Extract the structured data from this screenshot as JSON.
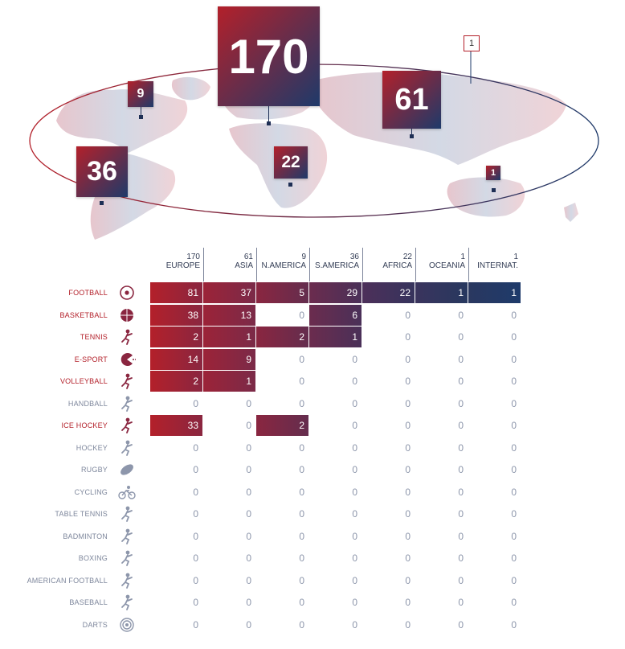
{
  "chart_data": {
    "type": "table",
    "columns": [
      {
        "count": "170",
        "region": "EUROPE"
      },
      {
        "count": "61",
        "region": "ASIA"
      },
      {
        "count": "9",
        "region": "N.AMERICA"
      },
      {
        "count": "36",
        "region": "S.AMERICA"
      },
      {
        "count": "22",
        "region": "AFRICA"
      },
      {
        "count": "1",
        "region": "OCEANIA"
      },
      {
        "count": "1",
        "region": "INTERNAT."
      }
    ],
    "rows": [
      {
        "sport": "FOOTBALL",
        "icon": "football-icon",
        "values": [
          81,
          37,
          5,
          29,
          22,
          1,
          1
        ],
        "filled": [
          1,
          1,
          1,
          1,
          1,
          1,
          1
        ]
      },
      {
        "sport": "BASKETBALL",
        "icon": "basketball-icon",
        "values": [
          38,
          13,
          0,
          6,
          0,
          0,
          0
        ],
        "filled": [
          1,
          1,
          0,
          1,
          0,
          0,
          0
        ]
      },
      {
        "sport": "TENNIS",
        "icon": "tennis-icon",
        "values": [
          2,
          1,
          2,
          1,
          0,
          0,
          0
        ],
        "filled": [
          1,
          1,
          1,
          1,
          0,
          0,
          0
        ]
      },
      {
        "sport": "E-SPORT",
        "icon": "esport-icon",
        "values": [
          14,
          9,
          0,
          0,
          0,
          0,
          0
        ],
        "filled": [
          1,
          1,
          0,
          0,
          0,
          0,
          0
        ]
      },
      {
        "sport": "VOLLEYBALL",
        "icon": "volleyball-icon",
        "values": [
          2,
          1,
          0,
          0,
          0,
          0,
          0
        ],
        "filled": [
          1,
          1,
          0,
          0,
          0,
          0,
          0
        ]
      },
      {
        "sport": "HANDBALL",
        "icon": "handball-icon",
        "values": [
          0,
          0,
          0,
          0,
          0,
          0,
          0
        ],
        "filled": [
          0,
          0,
          0,
          0,
          0,
          0,
          0
        ]
      },
      {
        "sport": "ICE HOCKEY",
        "icon": "ice-hockey-icon",
        "values": [
          33,
          0,
          2,
          0,
          0,
          0,
          0
        ],
        "filled": [
          1,
          0,
          1,
          0,
          0,
          0,
          0
        ]
      },
      {
        "sport": "HOCKEY",
        "icon": "hockey-icon",
        "values": [
          0,
          0,
          0,
          0,
          0,
          0,
          0
        ],
        "filled": [
          0,
          0,
          0,
          0,
          0,
          0,
          0
        ]
      },
      {
        "sport": "RUGBY",
        "icon": "rugby-icon",
        "values": [
          0,
          0,
          0,
          0,
          0,
          0,
          0
        ],
        "filled": [
          0,
          0,
          0,
          0,
          0,
          0,
          0
        ]
      },
      {
        "sport": "CYCLING",
        "icon": "cycling-icon",
        "values": [
          0,
          0,
          0,
          0,
          0,
          0,
          0
        ],
        "filled": [
          0,
          0,
          0,
          0,
          0,
          0,
          0
        ]
      },
      {
        "sport": "TABLE TENNIS",
        "icon": "table-tennis-icon",
        "values": [
          0,
          0,
          0,
          0,
          0,
          0,
          0
        ],
        "filled": [
          0,
          0,
          0,
          0,
          0,
          0,
          0
        ]
      },
      {
        "sport": "BADMINTON",
        "icon": "badminton-icon",
        "values": [
          0,
          0,
          0,
          0,
          0,
          0,
          0
        ],
        "filled": [
          0,
          0,
          0,
          0,
          0,
          0,
          0
        ]
      },
      {
        "sport": "BOXING",
        "icon": "boxing-icon",
        "values": [
          0,
          0,
          0,
          0,
          0,
          0,
          0
        ],
        "filled": [
          0,
          0,
          0,
          0,
          0,
          0,
          0
        ]
      },
      {
        "sport": "AMERICAN FOOTBALL",
        "icon": "american-football-icon",
        "values": [
          0,
          0,
          0,
          0,
          0,
          0,
          0
        ],
        "filled": [
          0,
          0,
          0,
          0,
          0,
          0,
          0
        ]
      },
      {
        "sport": "BASEBALL",
        "icon": "baseball-icon",
        "values": [
          0,
          0,
          0,
          0,
          0,
          0,
          0
        ],
        "filled": [
          0,
          0,
          0,
          0,
          0,
          0,
          0
        ]
      },
      {
        "sport": "DARTS",
        "icon": "darts-icon",
        "values": [
          0,
          0,
          0,
          0,
          0,
          0,
          0
        ],
        "filled": [
          0,
          0,
          0,
          0,
          0,
          0,
          0
        ]
      }
    ],
    "map_badges": [
      {
        "region": "EUROPE",
        "value": "170"
      },
      {
        "region": "ASIA",
        "value": "61"
      },
      {
        "region": "N.AMERICA",
        "value": "9"
      },
      {
        "region": "S.AMERICA",
        "value": "36"
      },
      {
        "region": "AFRICA",
        "value": "22"
      },
      {
        "region": "OCEANIA",
        "value": "1"
      },
      {
        "region": "INTERNAT.",
        "value": "1"
      }
    ]
  },
  "colors": {
    "red": "#b3202a",
    "navy": "#1e3a6a",
    "map_land": "#d6dbe6",
    "active_label": "#b3202a",
    "inactive_label": "#7e879c"
  }
}
